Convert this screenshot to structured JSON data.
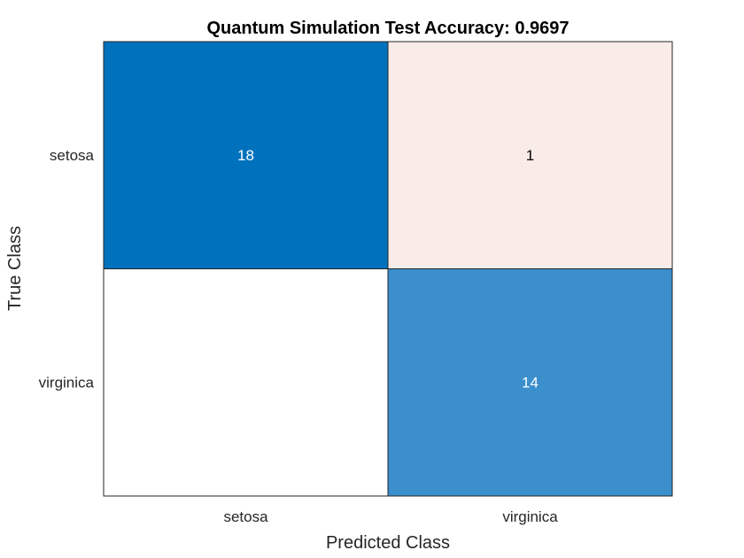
{
  "chart_data": {
    "type": "heatmap",
    "title": "Quantum Simulation Test Accuracy: 0.9697",
    "xlabel": "Predicted Class",
    "ylabel": "True Class",
    "x_categories": [
      "setosa",
      "virginica"
    ],
    "y_categories": [
      "setosa",
      "virginica"
    ],
    "values": [
      [
        18,
        1
      ],
      [
        0,
        14
      ]
    ],
    "cell_labels": [
      [
        "18",
        "1"
      ],
      [
        "",
        "14"
      ]
    ],
    "cell_colors": [
      [
        "#0072BD",
        "#F9EBE7"
      ],
      [
        "#FFFFFF",
        "#3A8FCC"
      ]
    ],
    "cell_text_colors": [
      [
        "#FFFFFF",
        "#000000"
      ],
      [
        "#000000",
        "#FFFFFF"
      ]
    ],
    "grid": true
  }
}
